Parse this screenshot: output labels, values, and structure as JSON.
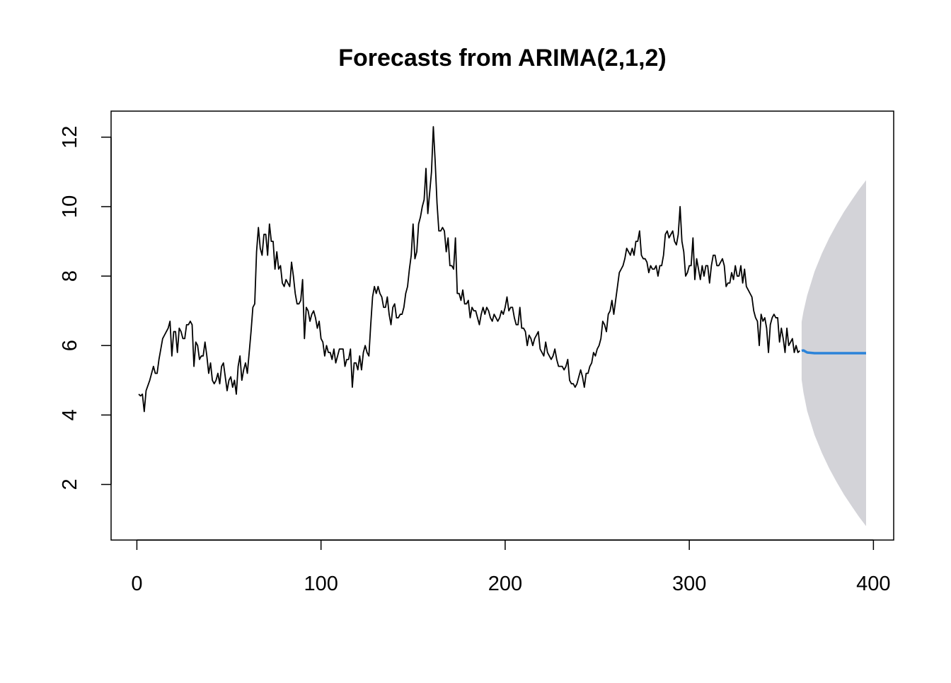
{
  "chart_data": {
    "type": "line",
    "title": "Forecasts from ARIMA(2,1,2)",
    "xlabel": "",
    "ylabel": "",
    "xlim": [
      -14,
      411
    ],
    "ylim": [
      0.4,
      12.75
    ],
    "xticks": [
      0,
      100,
      200,
      300,
      400
    ],
    "yticks": [
      2,
      4,
      6,
      8,
      10,
      12
    ],
    "grid": false,
    "colors": {
      "series": "#000000",
      "forecast": "#2b83d9",
      "interval": "#d3d3d8"
    },
    "series": [
      {
        "x_start": 1,
        "values": [
          4.6,
          4.55,
          4.6,
          4.1,
          4.7,
          4.85,
          5.0,
          5.2,
          5.4,
          5.2,
          5.2,
          5.6,
          5.9,
          6.2,
          6.3,
          6.4,
          6.5,
          6.7,
          5.7,
          6.4,
          6.4,
          5.8,
          6.5,
          6.4,
          6.2,
          6.2,
          6.6,
          6.6,
          6.7,
          6.6,
          5.4,
          6.1,
          6.0,
          5.6,
          5.7,
          5.7,
          6.1,
          5.7,
          5.2,
          5.5,
          5.0,
          4.9,
          5.0,
          5.2,
          4.9,
          5.4,
          5.5,
          5.1,
          4.7,
          5.0,
          5.1,
          4.8,
          5.0,
          4.6,
          5.4,
          5.7,
          5.0,
          5.3,
          5.5,
          5.2,
          5.8,
          6.4,
          7.1,
          7.2,
          8.7,
          9.4,
          8.8,
          8.6,
          9.2,
          9.2,
          8.6,
          9.5,
          9.0,
          9.0,
          8.2,
          8.7,
          8.2,
          8.3,
          7.8,
          7.7,
          7.9,
          7.8,
          7.7,
          8.4,
          8.0,
          7.5,
          7.2,
          7.2,
          7.3,
          7.9,
          6.2,
          7.1,
          7.0,
          6.7,
          6.9,
          7.0,
          6.8,
          6.5,
          6.7,
          6.2,
          6.1,
          5.7,
          6.0,
          5.8,
          5.8,
          5.6,
          5.9,
          5.5,
          5.7,
          5.9,
          5.9,
          5.9,
          5.4,
          5.6,
          5.6,
          5.9,
          4.8,
          5.5,
          5.5,
          5.3,
          5.7,
          5.3,
          5.8,
          6.0,
          5.8,
          5.7,
          6.6,
          7.4,
          7.7,
          7.5,
          7.7,
          7.5,
          7.4,
          7.1,
          7.1,
          7.4,
          6.9,
          6.6,
          7.1,
          7.2,
          6.8,
          6.8,
          6.9,
          6.9,
          7.1,
          7.5,
          7.7,
          8.2,
          8.6,
          9.5,
          8.5,
          8.7,
          9.5,
          9.7,
          10.0,
          10.2,
          11.1,
          9.8,
          10.4,
          11.0,
          12.3,
          11.3,
          10.1,
          9.3,
          9.3,
          9.4,
          9.3,
          8.7,
          9.1,
          8.3,
          8.3,
          8.2,
          9.1,
          7.5,
          7.5,
          7.3,
          7.6,
          7.2,
          7.2,
          7.3,
          6.8,
          7.1,
          7.0,
          7.0,
          6.8,
          6.6,
          6.9,
          7.1,
          6.9,
          7.1,
          7.0,
          6.8,
          6.7,
          6.9,
          6.8,
          6.7,
          6.8,
          7.0,
          6.9,
          7.1,
          7.4,
          7.0,
          7.1,
          7.1,
          6.8,
          6.6,
          6.6,
          7.1,
          6.5,
          6.5,
          6.4,
          6.0,
          6.3,
          6.2,
          6.0,
          6.2,
          6.3,
          6.4,
          5.9,
          5.8,
          5.7,
          6.1,
          5.8,
          5.7,
          5.6,
          5.7,
          5.9,
          5.6,
          5.4,
          5.4,
          5.4,
          5.3,
          5.4,
          5.6,
          5.0,
          4.9,
          4.9,
          4.8,
          4.9,
          5.1,
          5.3,
          5.1,
          4.8,
          5.2,
          5.2,
          5.4,
          5.5,
          5.8,
          5.7,
          5.9,
          6.0,
          6.2,
          6.7,
          6.6,
          6.4,
          6.9,
          7.0,
          7.3,
          6.9,
          7.3,
          7.7,
          8.1,
          8.2,
          8.3,
          8.5,
          8.8,
          8.7,
          8.6,
          8.8,
          8.6,
          9.0,
          9.0,
          9.3,
          8.6,
          8.5,
          8.5,
          8.4,
          8.1,
          8.3,
          8.2,
          8.2,
          8.3,
          8.0,
          8.3,
          8.3,
          8.6,
          9.2,
          9.3,
          9.1,
          9.2,
          9.3,
          9.0,
          8.9,
          9.2,
          10.0,
          9.0,
          8.7,
          8.0,
          8.1,
          8.3,
          8.3,
          9.1,
          7.9,
          8.5,
          8.2,
          7.9,
          8.3,
          8.0,
          8.3,
          8.3,
          7.8,
          8.3,
          8.6,
          8.6,
          8.3,
          8.3,
          8.4,
          8.5,
          8.3,
          7.7,
          7.8,
          7.8,
          8.1,
          7.9,
          8.3,
          8.0,
          8.0,
          8.3,
          7.8,
          8.2,
          7.7,
          7.6,
          7.5,
          7.4,
          7.0,
          6.8,
          6.7,
          6.0,
          6.9,
          6.7,
          6.8,
          6.5,
          5.8,
          6.6,
          6.8,
          6.9,
          6.8,
          6.8,
          6.1,
          6.5,
          6.2,
          5.8,
          6.5,
          6.0,
          6.1,
          6.2,
          5.8,
          6.0,
          5.8,
          5.85
        ]
      }
    ],
    "forecast": {
      "x": [
        361,
        362,
        364,
        368,
        372,
        376,
        380,
        384,
        388,
        392,
        396
      ],
      "mean": [
        5.85,
        5.86,
        5.8,
        5.78,
        5.78,
        5.78,
        5.78,
        5.78,
        5.78,
        5.78,
        5.78
      ],
      "upper": [
        6.68,
        6.98,
        7.44,
        8.13,
        8.65,
        9.1,
        9.49,
        9.85,
        10.17,
        10.48,
        10.76
      ],
      "lower": [
        5.02,
        4.65,
        4.12,
        3.43,
        2.91,
        2.46,
        2.07,
        1.71,
        1.39,
        1.08,
        0.8
      ]
    }
  }
}
